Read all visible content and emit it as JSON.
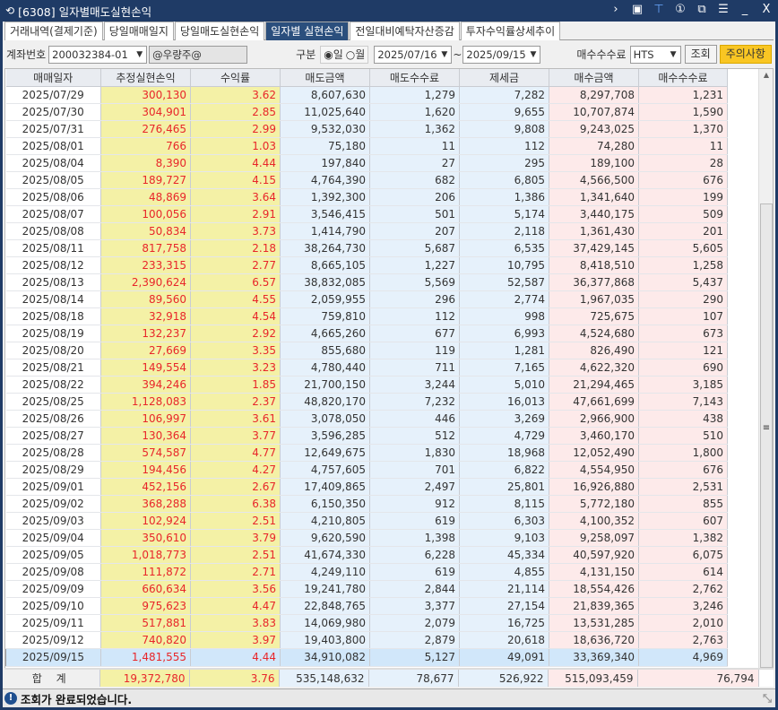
{
  "window": {
    "title": "[6308] 일자별매도실현손익"
  },
  "tabs": [
    "거래내역(결제기준)",
    "당일매매일지",
    "당일매도실현손익",
    "일자별 실현손익",
    "전일대비예탁자산증감",
    "투자수익률상세추이"
  ],
  "active_tab": 3,
  "toolbar": {
    "account_label": "계좌번호",
    "account_value": "200032384-01",
    "account_name": "@우량주@",
    "type_label": "구분",
    "radio_day": "일",
    "radio_month": "월",
    "radio_selected": "일",
    "date_from": "2025/07/16",
    "date_sep": "~",
    "date_to": "2025/09/15",
    "fee_label": "매수수수료",
    "fee_value": "HTS",
    "query_button": "조회",
    "notice_button": "주의사항"
  },
  "colors": {
    "title_bg": "#1f3b66",
    "profit_bg": "#f4f1a6",
    "profit_text": "#e8262a",
    "sell_bg": "#e6f1fb",
    "buy_bg": "#fdeaea",
    "selected_row": "#d1e7fa",
    "notice_button": "#f9c623"
  },
  "table": {
    "columns": [
      "매매일자",
      "추정실현손익",
      "수익률",
      "매도금액",
      "매도수수료",
      "제세금",
      "매수금액",
      "매수수수료"
    ],
    "rows": [
      [
        "2025/07/29",
        "300,130",
        "3.62",
        "8,607,630",
        "1,279",
        "7,282",
        "8,297,708",
        "1,231"
      ],
      [
        "2025/07/30",
        "304,901",
        "2.85",
        "11,025,640",
        "1,620",
        "9,655",
        "10,707,874",
        "1,590"
      ],
      [
        "2025/07/31",
        "276,465",
        "2.99",
        "9,532,030",
        "1,362",
        "9,808",
        "9,243,025",
        "1,370"
      ],
      [
        "2025/08/01",
        "766",
        "1.03",
        "75,180",
        "11",
        "112",
        "74,280",
        "11"
      ],
      [
        "2025/08/04",
        "8,390",
        "4.44",
        "197,840",
        "27",
        "295",
        "189,100",
        "28"
      ],
      [
        "2025/08/05",
        "189,727",
        "4.15",
        "4,764,390",
        "682",
        "6,805",
        "4,566,500",
        "676"
      ],
      [
        "2025/08/06",
        "48,869",
        "3.64",
        "1,392,300",
        "206",
        "1,386",
        "1,341,640",
        "199"
      ],
      [
        "2025/08/07",
        "100,056",
        "2.91",
        "3,546,415",
        "501",
        "5,174",
        "3,440,175",
        "509"
      ],
      [
        "2025/08/08",
        "50,834",
        "3.73",
        "1,414,790",
        "207",
        "2,118",
        "1,361,430",
        "201"
      ],
      [
        "2025/08/11",
        "817,758",
        "2.18",
        "38,264,730",
        "5,687",
        "6,535",
        "37,429,145",
        "5,605"
      ],
      [
        "2025/08/12",
        "233,315",
        "2.77",
        "8,665,105",
        "1,227",
        "10,795",
        "8,418,510",
        "1,258"
      ],
      [
        "2025/08/13",
        "2,390,624",
        "6.57",
        "38,832,085",
        "5,569",
        "52,587",
        "36,377,868",
        "5,437"
      ],
      [
        "2025/08/14",
        "89,560",
        "4.55",
        "2,059,955",
        "296",
        "2,774",
        "1,967,035",
        "290"
      ],
      [
        "2025/08/18",
        "32,918",
        "4.54",
        "759,810",
        "112",
        "998",
        "725,675",
        "107"
      ],
      [
        "2025/08/19",
        "132,237",
        "2.92",
        "4,665,260",
        "677",
        "6,993",
        "4,524,680",
        "673"
      ],
      [
        "2025/08/20",
        "27,669",
        "3.35",
        "855,680",
        "119",
        "1,281",
        "826,490",
        "121"
      ],
      [
        "2025/08/21",
        "149,554",
        "3.23",
        "4,780,440",
        "711",
        "7,165",
        "4,622,320",
        "690"
      ],
      [
        "2025/08/22",
        "394,246",
        "1.85",
        "21,700,150",
        "3,244",
        "5,010",
        "21,294,465",
        "3,185"
      ],
      [
        "2025/08/25",
        "1,128,083",
        "2.37",
        "48,820,170",
        "7,232",
        "16,013",
        "47,661,699",
        "7,143"
      ],
      [
        "2025/08/26",
        "106,997",
        "3.61",
        "3,078,050",
        "446",
        "3,269",
        "2,966,900",
        "438"
      ],
      [
        "2025/08/27",
        "130,364",
        "3.77",
        "3,596,285",
        "512",
        "4,729",
        "3,460,170",
        "510"
      ],
      [
        "2025/08/28",
        "574,587",
        "4.77",
        "12,649,675",
        "1,830",
        "18,968",
        "12,052,490",
        "1,800"
      ],
      [
        "2025/08/29",
        "194,456",
        "4.27",
        "4,757,605",
        "701",
        "6,822",
        "4,554,950",
        "676"
      ],
      [
        "2025/09/01",
        "452,156",
        "2.67",
        "17,409,865",
        "2,497",
        "25,801",
        "16,926,880",
        "2,531"
      ],
      [
        "2025/09/02",
        "368,288",
        "6.38",
        "6,150,350",
        "912",
        "8,115",
        "5,772,180",
        "855"
      ],
      [
        "2025/09/03",
        "102,924",
        "2.51",
        "4,210,805",
        "619",
        "6,303",
        "4,100,352",
        "607"
      ],
      [
        "2025/09/04",
        "350,610",
        "3.79",
        "9,620,590",
        "1,398",
        "9,103",
        "9,258,097",
        "1,382"
      ],
      [
        "2025/09/05",
        "1,018,773",
        "2.51",
        "41,674,330",
        "6,228",
        "45,334",
        "40,597,920",
        "6,075"
      ],
      [
        "2025/09/08",
        "111,872",
        "2.71",
        "4,249,110",
        "619",
        "4,855",
        "4,131,150",
        "614"
      ],
      [
        "2025/09/09",
        "660,634",
        "3.56",
        "19,241,780",
        "2,844",
        "21,114",
        "18,554,426",
        "2,762"
      ],
      [
        "2025/09/10",
        "975,623",
        "4.47",
        "22,848,765",
        "3,377",
        "27,154",
        "21,839,365",
        "3,246"
      ],
      [
        "2025/09/11",
        "517,881",
        "3.83",
        "14,069,980",
        "2,079",
        "16,725",
        "13,531,285",
        "2,010"
      ],
      [
        "2025/09/12",
        "740,820",
        "3.97",
        "19,403,800",
        "2,879",
        "20,618",
        "18,636,720",
        "2,763"
      ],
      [
        "2025/09/15",
        "1,481,555",
        "4.44",
        "34,910,082",
        "5,127",
        "49,091",
        "33,369,340",
        "4,969"
      ]
    ],
    "selected_row": "2025/09/15",
    "total": [
      "합 계",
      "19,372,780",
      "3.76",
      "535,148,632",
      "78,677",
      "526,922",
      "515,093,459",
      "76,794"
    ]
  },
  "status": {
    "message": "조회가 완료되었습니다."
  }
}
